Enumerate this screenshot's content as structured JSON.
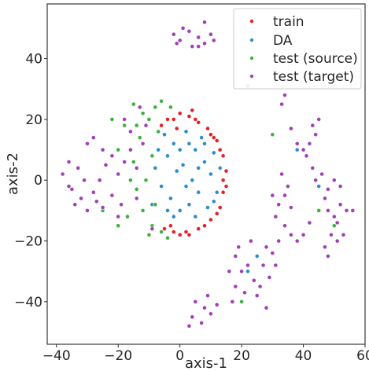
{
  "chart_data": {
    "type": "scatter",
    "title": "",
    "xlabel": "axis-1",
    "ylabel": "axis-2",
    "xlim": [
      -43,
      60
    ],
    "ylim": [
      -54,
      58
    ],
    "xticks": [
      -40,
      -20,
      0,
      20,
      40,
      60
    ],
    "yticks": [
      -40,
      -20,
      0,
      20,
      40
    ],
    "xtick_labels": [
      "−40",
      "−20",
      "0",
      "20",
      "40",
      "60"
    ],
    "ytick_labels": [
      "−40",
      "−20",
      "0",
      "20",
      "40"
    ],
    "grid": false,
    "legend_position": "top-right",
    "series": [
      {
        "name": "train",
        "color": "#e32228",
        "values": [
          [
            -2,
            20
          ],
          [
            0,
            22
          ],
          [
            3,
            21
          ],
          [
            6,
            19
          ],
          [
            9,
            17
          ],
          [
            12,
            13
          ],
          [
            14,
            8
          ],
          [
            15,
            3
          ],
          [
            14,
            -4
          ],
          [
            13,
            -9
          ],
          [
            10,
            -13
          ],
          [
            6,
            -16
          ],
          [
            2,
            -17
          ],
          [
            -2,
            -17
          ],
          [
            4,
            23
          ],
          [
            -4,
            20
          ],
          [
            -6,
            18
          ],
          [
            10,
            15
          ],
          [
            14,
            0
          ],
          [
            8,
            -15
          ],
          [
            0,
            -18
          ],
          [
            -3,
            -15
          ],
          [
            11,
            14
          ],
          [
            15,
            -2
          ],
          [
            5,
            20
          ],
          [
            -1,
            17
          ],
          [
            12,
            -11
          ],
          [
            3,
            -18
          ],
          [
            -5,
            -16
          ],
          [
            13,
            10
          ]
        ]
      },
      {
        "name": "DA",
        "color": "#2d8ccc",
        "values": [
          [
            -5,
            15
          ],
          [
            -2,
            12
          ],
          [
            2,
            16
          ],
          [
            5,
            10
          ],
          [
            8,
            6
          ],
          [
            10,
            2
          ],
          [
            6,
            -4
          ],
          [
            3,
            -8
          ],
          [
            0,
            -10
          ],
          [
            -3,
            -6
          ],
          [
            -6,
            -2
          ],
          [
            -8,
            4
          ],
          [
            -4,
            8
          ],
          [
            1,
            5
          ],
          [
            4,
            0
          ],
          [
            9,
            -9
          ],
          [
            12,
            -4
          ],
          [
            11,
            9
          ],
          [
            7,
            14
          ],
          [
            -7,
            10
          ],
          [
            -2,
            -12
          ],
          [
            5,
            -12
          ],
          [
            2,
            -2
          ],
          [
            -1,
            3
          ],
          [
            8,
            12
          ],
          [
            13,
            4
          ],
          [
            -4,
            -10
          ],
          [
            6,
            4
          ],
          [
            0,
            10
          ],
          [
            3,
            12
          ],
          [
            -9,
            -8
          ],
          [
            11,
            -7
          ],
          [
            45,
            -2
          ],
          [
            38,
            10
          ],
          [
            22,
            -30
          ],
          [
            25,
            -25
          ]
        ]
      },
      {
        "name": "test (source)",
        "color": "#3fb03f",
        "values": [
          [
            -10,
            20
          ],
          [
            -13,
            14
          ],
          [
            -15,
            6
          ],
          [
            -14,
            -3
          ],
          [
            -12,
            -10
          ],
          [
            -9,
            -15
          ],
          [
            -6,
            -17
          ],
          [
            -8,
            24
          ],
          [
            -12,
            22
          ],
          [
            -18,
            18
          ],
          [
            -20,
            10
          ],
          [
            -17,
            -12
          ],
          [
            -10,
            -18
          ],
          [
            -4,
            -19
          ],
          [
            -7,
            16
          ],
          [
            -9,
            8
          ],
          [
            -11,
            0
          ],
          [
            -8,
            -8
          ],
          [
            -15,
            25
          ],
          [
            -6,
            26
          ],
          [
            -20,
            -15
          ],
          [
            -25,
            -10
          ],
          [
            -22,
            20
          ],
          [
            -3,
            24
          ],
          [
            -16,
            0
          ],
          [
            -14,
            18
          ],
          [
            45,
            -10
          ],
          [
            30,
            15
          ],
          [
            20,
            -40
          ],
          [
            50,
            -15
          ]
        ]
      },
      {
        "name": "test (target)",
        "color": "#a040b5",
        "values": [
          [
            -38,
            2
          ],
          [
            -36,
            6
          ],
          [
            -35,
            -3
          ],
          [
            -33,
            4
          ],
          [
            -32,
            -6
          ],
          [
            -30,
            12
          ],
          [
            -28,
            14
          ],
          [
            -27,
            -7
          ],
          [
            -25,
            -9
          ],
          [
            -30,
            -10
          ],
          [
            -34,
            -8
          ],
          [
            -36,
            -2
          ],
          [
            -26,
            0
          ],
          [
            -24,
            5
          ],
          [
            -22,
            8
          ],
          [
            -20,
            2
          ],
          [
            -18,
            6
          ],
          [
            -16,
            10
          ],
          [
            -14,
            4
          ],
          [
            -22,
            -5
          ],
          [
            -19,
            -8
          ],
          [
            -25,
            10
          ],
          [
            -31,
            0
          ],
          [
            -28,
            -4
          ],
          [
            -12,
            12
          ],
          [
            -14,
            -6
          ],
          [
            -16,
            16
          ],
          [
            -11,
            18
          ],
          [
            -13,
            24
          ],
          [
            -18,
            20
          ],
          [
            -9,
            -16
          ],
          [
            -20,
            -12
          ],
          [
            -2,
            48
          ],
          [
            0,
            46
          ],
          [
            3,
            49
          ],
          [
            6,
            47
          ],
          [
            8,
            45
          ],
          [
            10,
            48
          ],
          [
            4,
            44
          ],
          [
            1,
            50
          ],
          [
            8,
            52
          ],
          [
            6,
            44
          ],
          [
            -1,
            45
          ],
          [
            11,
            46
          ],
          [
            18,
            -25
          ],
          [
            20,
            -30
          ],
          [
            22,
            -28
          ],
          [
            24,
            -33
          ],
          [
            26,
            -35
          ],
          [
            18,
            -35
          ],
          [
            16,
            -30
          ],
          [
            28,
            -22
          ],
          [
            30,
            -24
          ],
          [
            21,
            -37
          ],
          [
            25,
            -38
          ],
          [
            19,
            -22
          ],
          [
            27,
            -28
          ],
          [
            23,
            -20
          ],
          [
            32,
            -20
          ],
          [
            34,
            -15
          ],
          [
            36,
            -18
          ],
          [
            38,
            -20
          ],
          [
            31,
            -28
          ],
          [
            29,
            -32
          ],
          [
            17,
            -40
          ],
          [
            28,
            -42
          ],
          [
            5,
            -40
          ],
          [
            8,
            -42
          ],
          [
            10,
            -44
          ],
          [
            4,
            -45
          ],
          [
            7,
            -47
          ],
          [
            12,
            -41
          ],
          [
            3,
            -48
          ],
          [
            9,
            -38
          ],
          [
            30,
            -5
          ],
          [
            32,
            -8
          ],
          [
            34,
            -5
          ],
          [
            35,
            -2
          ],
          [
            36,
            -9
          ],
          [
            33,
            2
          ],
          [
            31,
            -12
          ],
          [
            40,
            10
          ],
          [
            42,
            12
          ],
          [
            44,
            15
          ],
          [
            38,
            12
          ],
          [
            43,
            18
          ],
          [
            45,
            20
          ],
          [
            36,
            17
          ],
          [
            41,
            8
          ],
          [
            44,
            0
          ],
          [
            46,
            2
          ],
          [
            48,
            -3
          ],
          [
            43,
            4
          ],
          [
            50,
            0
          ],
          [
            52,
            -2
          ],
          [
            47,
            -6
          ],
          [
            48,
            -10
          ],
          [
            50,
            -12
          ],
          [
            52,
            -8
          ],
          [
            54,
            -10
          ],
          [
            56,
            -10
          ],
          [
            51,
            -14
          ],
          [
            49,
            -18
          ],
          [
            47,
            -22
          ],
          [
            48,
            -25
          ],
          [
            51,
            -20
          ],
          [
            53,
            -18
          ],
          [
            33,
            25
          ],
          [
            34,
            28
          ],
          [
            40,
            -18
          ],
          [
            42,
            -14
          ],
          [
            22,
            31
          ]
        ]
      }
    ]
  }
}
